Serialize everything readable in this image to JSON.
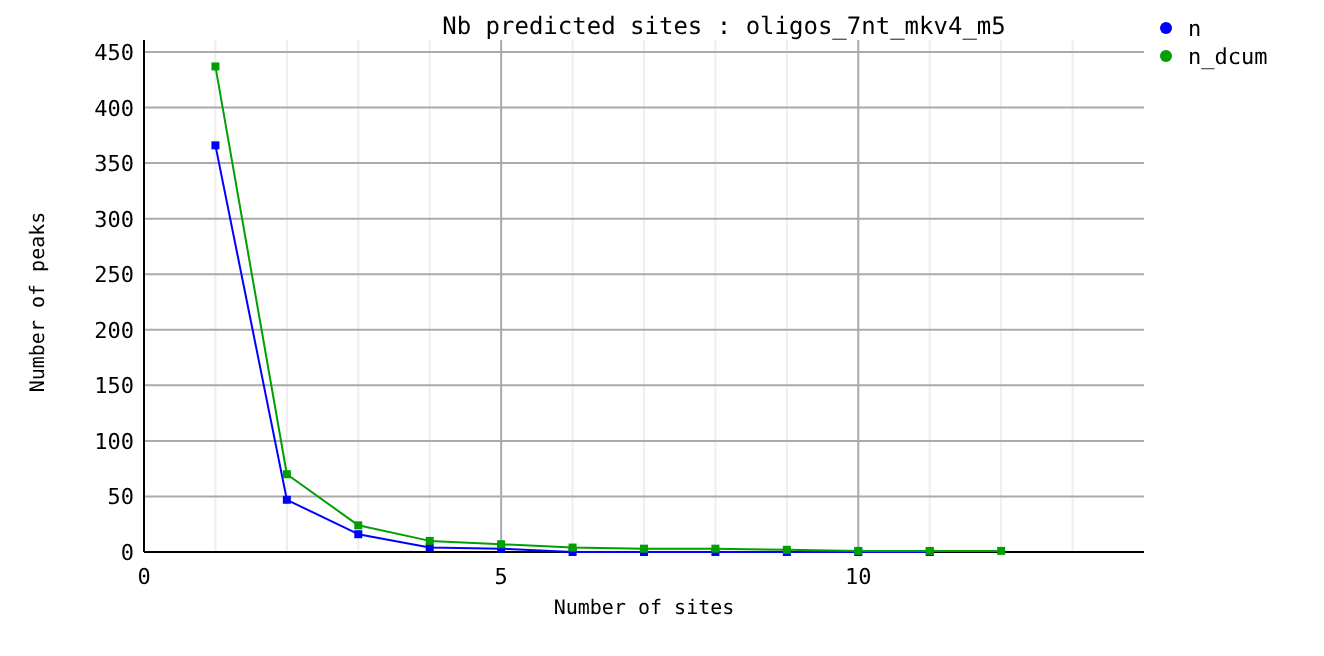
{
  "chart_data": {
    "type": "line",
    "title": "Nb predicted sites : oligos_7nt_mkv4_m5",
    "xlabel": "Number of sites",
    "ylabel": "Number of peaks",
    "series": [
      {
        "name": "n",
        "color": "#0000ff",
        "x": [
          1,
          2,
          3,
          4,
          5,
          6,
          7,
          8,
          9,
          10,
          11
        ],
        "values": [
          366,
          47,
          16,
          4,
          3,
          0,
          0,
          0,
          0,
          0,
          0
        ]
      },
      {
        "name": "n_dcum",
        "color": "#00a000",
        "x": [
          1,
          2,
          3,
          4,
          5,
          6,
          7,
          8,
          9,
          10,
          11,
          12
        ],
        "values": [
          437,
          70,
          24,
          10,
          7,
          4,
          3,
          3,
          2,
          1,
          1,
          1
        ]
      }
    ],
    "xlim": [
      0,
      14
    ],
    "xticks": [
      0,
      {
        "value": 1,
        "label": null
      },
      {
        "value": 2,
        "label": null
      },
      {
        "value": 3,
        "label": null
      },
      {
        "value": 4,
        "label": null
      },
      5,
      {
        "value": 6,
        "label": null
      },
      {
        "value": 7,
        "label": null
      },
      {
        "value": 8,
        "label": null
      },
      {
        "value": 9,
        "label": null
      },
      10,
      {
        "value": 11,
        "label": null
      },
      {
        "value": 12,
        "label": null
      },
      {
        "value": 13,
        "label": null
      }
    ],
    "ylim": [
      0,
      450
    ],
    "yticks": [
      0,
      50,
      100,
      150,
      200,
      250,
      300,
      350,
      400,
      450
    ],
    "grid": true,
    "legend": "top right",
    "marker": "square",
    "line_style": "solid"
  }
}
